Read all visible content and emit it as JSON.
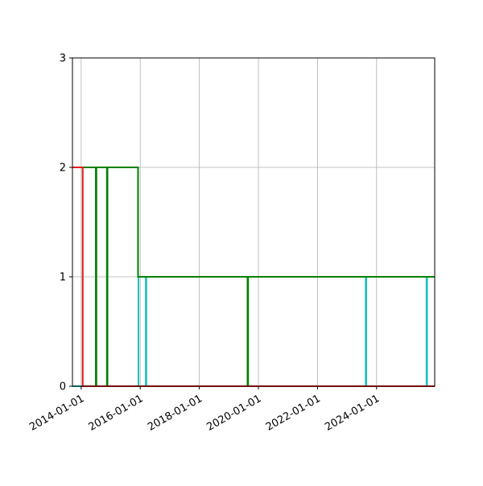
{
  "chart_data": {
    "type": "line",
    "title": "",
    "xlabel": "",
    "ylabel": "",
    "x_axis": "date",
    "xlim": [
      "2013-09-15",
      "2025-12-20"
    ],
    "ylim": [
      0,
      3
    ],
    "y_ticks": [
      "0",
      "1",
      "2",
      "3"
    ],
    "x_ticks": [
      "2014-01-01",
      "2016-01-01",
      "2018-01-01",
      "2020-01-01",
      "2022-01-01",
      "2024-01-01"
    ],
    "grid": true,
    "legend": "none",
    "step": "post",
    "series": [
      {
        "color": "#1fbfbf",
        "points": [
          [
            "2013-09-15",
            0
          ],
          [
            "2015-12-10",
            1
          ],
          [
            "2016-03-10",
            0
          ],
          [
            "2016-03-17",
            1
          ],
          [
            "2023-08-20",
            0
          ],
          [
            "2023-08-27",
            1
          ],
          [
            "2025-09-10",
            0
          ],
          [
            "2025-09-17",
            1
          ],
          [
            "2025-12-20",
            1
          ]
        ]
      },
      {
        "color": "#008000",
        "points": [
          [
            "2013-09-15",
            2
          ],
          [
            "2014-07-01",
            0
          ],
          [
            "2014-07-08",
            2
          ],
          [
            "2014-11-15",
            0
          ],
          [
            "2014-11-22",
            2
          ],
          [
            "2015-12-05",
            1
          ],
          [
            "2019-08-20",
            0
          ],
          [
            "2019-08-27",
            1
          ],
          [
            "2025-12-20",
            1
          ]
        ]
      },
      {
        "color": "#e31a1c",
        "points": [
          [
            "2013-09-15",
            2
          ],
          [
            "2014-01-20",
            0
          ],
          [
            "2016-03-01",
            0
          ],
          [
            "2025-12-20",
            0
          ]
        ]
      }
    ]
  }
}
